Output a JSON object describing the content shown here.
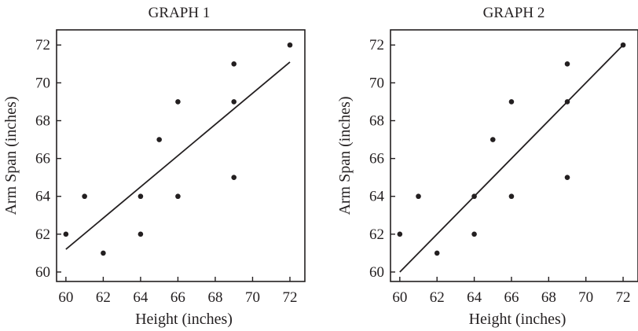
{
  "chart_data": [
    {
      "type": "scatter",
      "title": "GRAPH 1",
      "xlabel": "Height (inches)",
      "ylabel": "Arm Span (inches)",
      "xlim": [
        59.5,
        72.8
      ],
      "ylim": [
        59.5,
        72.8
      ],
      "xticks": [
        60,
        62,
        64,
        66,
        68,
        70,
        72
      ],
      "yticks": [
        60,
        62,
        64,
        66,
        68,
        70,
        72
      ],
      "grid": false,
      "points": [
        {
          "x": 60,
          "y": 62
        },
        {
          "x": 61,
          "y": 64
        },
        {
          "x": 62,
          "y": 61
        },
        {
          "x": 64,
          "y": 64
        },
        {
          "x": 64,
          "y": 62
        },
        {
          "x": 65,
          "y": 67
        },
        {
          "x": 66,
          "y": 69
        },
        {
          "x": 66,
          "y": 64
        },
        {
          "x": 69,
          "y": 71
        },
        {
          "x": 69,
          "y": 69
        },
        {
          "x": 69,
          "y": 65
        },
        {
          "x": 72,
          "y": 72
        }
      ],
      "fit_line": {
        "x": [
          60,
          72
        ],
        "y": [
          61.2,
          71.1
        ]
      }
    },
    {
      "type": "scatter",
      "title": "GRAPH 2",
      "xlabel": "Height (inches)",
      "ylabel": "Arm Span (inches)",
      "xlim": [
        59.5,
        72.8
      ],
      "ylim": [
        59.5,
        72.8
      ],
      "xticks": [
        60,
        62,
        64,
        66,
        68,
        70,
        72
      ],
      "yticks": [
        60,
        62,
        64,
        66,
        68,
        70,
        72
      ],
      "grid": false,
      "points": [
        {
          "x": 60,
          "y": 62
        },
        {
          "x": 61,
          "y": 64
        },
        {
          "x": 62,
          "y": 61
        },
        {
          "x": 64,
          "y": 64
        },
        {
          "x": 64,
          "y": 62
        },
        {
          "x": 65,
          "y": 67
        },
        {
          "x": 66,
          "y": 69
        },
        {
          "x": 66,
          "y": 64
        },
        {
          "x": 69,
          "y": 71
        },
        {
          "x": 69,
          "y": 69
        },
        {
          "x": 69,
          "y": 65
        },
        {
          "x": 72,
          "y": 72
        }
      ],
      "fit_line": {
        "x": [
          60,
          72
        ],
        "y": [
          60,
          72
        ]
      }
    }
  ]
}
